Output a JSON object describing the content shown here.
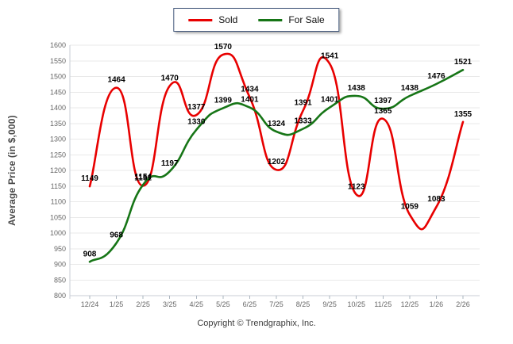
{
  "legend": {
    "items": [
      {
        "label": "Sold",
        "color": "#e80000"
      },
      {
        "label": "For Sale",
        "color": "#167516"
      }
    ]
  },
  "footer": {
    "copyright": "Copyright © Trendgraphix, Inc."
  },
  "chart_data": {
    "type": "line",
    "title": "",
    "categories": [
      "12/24",
      "1/25",
      "2/25",
      "3/25",
      "4/25",
      "5/25",
      "6/25",
      "7/25",
      "8/25",
      "9/25",
      "10/25",
      "11/25",
      "12/25",
      "1/26",
      "2/26"
    ],
    "series": [
      {
        "name": "Sold",
        "color": "#e80000",
        "values": [
          1149,
          1464,
          1151,
          1470,
          1377,
          1570,
          1434,
          1202,
          1391,
          1541,
          1123,
          1365,
          1059,
          1083,
          1355
        ]
      },
      {
        "name": "For Sale",
        "color": "#167516",
        "values": [
          908,
          968,
          1154,
          1197,
          1330,
          1399,
          1401,
          1324,
          1333,
          1401,
          1438,
          1397,
          1438,
          1476,
          1521
        ]
      }
    ],
    "xlabel": "",
    "ylabel": "Average Price (in $,000)",
    "ylim": [
      800,
      1600
    ],
    "ytick_step": 50,
    "grid": true,
    "grid_color": "#e9e9e9",
    "axis_color": "#c9ced6",
    "legend_position": "top-center",
    "line_style": "smooth",
    "data_labels": true
  }
}
